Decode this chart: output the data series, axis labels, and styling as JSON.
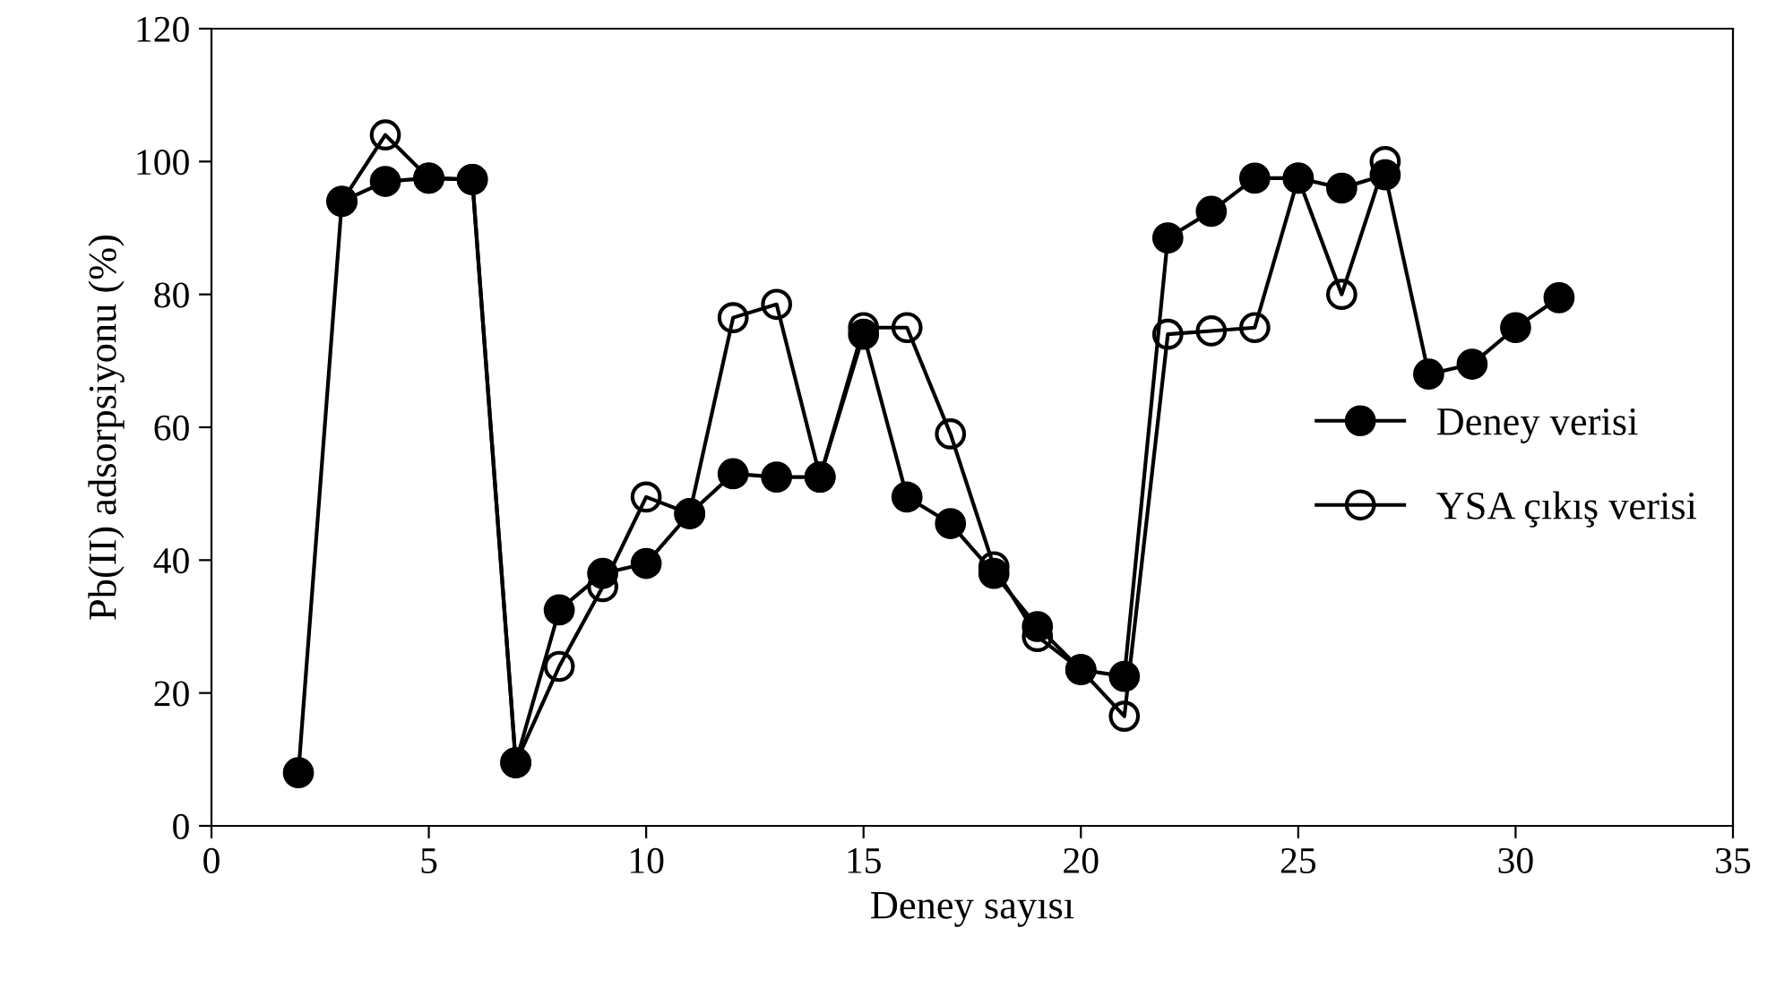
{
  "chart_data": {
    "type": "line",
    "xlabel": "Deney sayısı",
    "ylabel": "Pb(II) adsorpsiyonu (%)",
    "x": [
      2,
      3,
      4,
      5,
      6,
      7,
      8,
      9,
      10,
      11,
      12,
      13,
      14,
      15,
      16,
      17,
      18,
      19,
      20,
      21,
      22,
      23,
      24,
      25,
      26,
      27,
      28,
      29,
      30,
      31
    ],
    "series": [
      {
        "name": "YSA çıkış verisi",
        "color": "#000000",
        "marker": "circle",
        "values": [
          null,
          94,
          104,
          97.5,
          97.3,
          9.5,
          24,
          36,
          49.5,
          47,
          76.5,
          78.5,
          52.5,
          75,
          75,
          59,
          39,
          28.5,
          23.5,
          16.5,
          74,
          74.5,
          75,
          97.5,
          80,
          100,
          null,
          null,
          null,
          null
        ]
      },
      {
        "name": "Deney verisi",
        "color": "#000000",
        "marker": "circle",
        "values": [
          8,
          94,
          97,
          97.5,
          97.3,
          9.5,
          32.5,
          38,
          39.5,
          47,
          53,
          52.5,
          52.5,
          74,
          49.5,
          45.5,
          38,
          30,
          23.5,
          22.5,
          88.5,
          92.5,
          97.5,
          97.5,
          96,
          98,
          68,
          69.5,
          75,
          79.5
        ]
      }
    ],
    "xlim": [
      0,
      35
    ],
    "xticks": [
      0,
      5,
      10,
      15,
      20,
      25,
      30,
      35
    ],
    "ylim": [
      0,
      120
    ],
    "yticks": [
      0,
      20,
      40,
      60,
      80,
      100,
      120
    ],
    "grid": false,
    "legend": "center right",
    "line_style": "solid"
  }
}
